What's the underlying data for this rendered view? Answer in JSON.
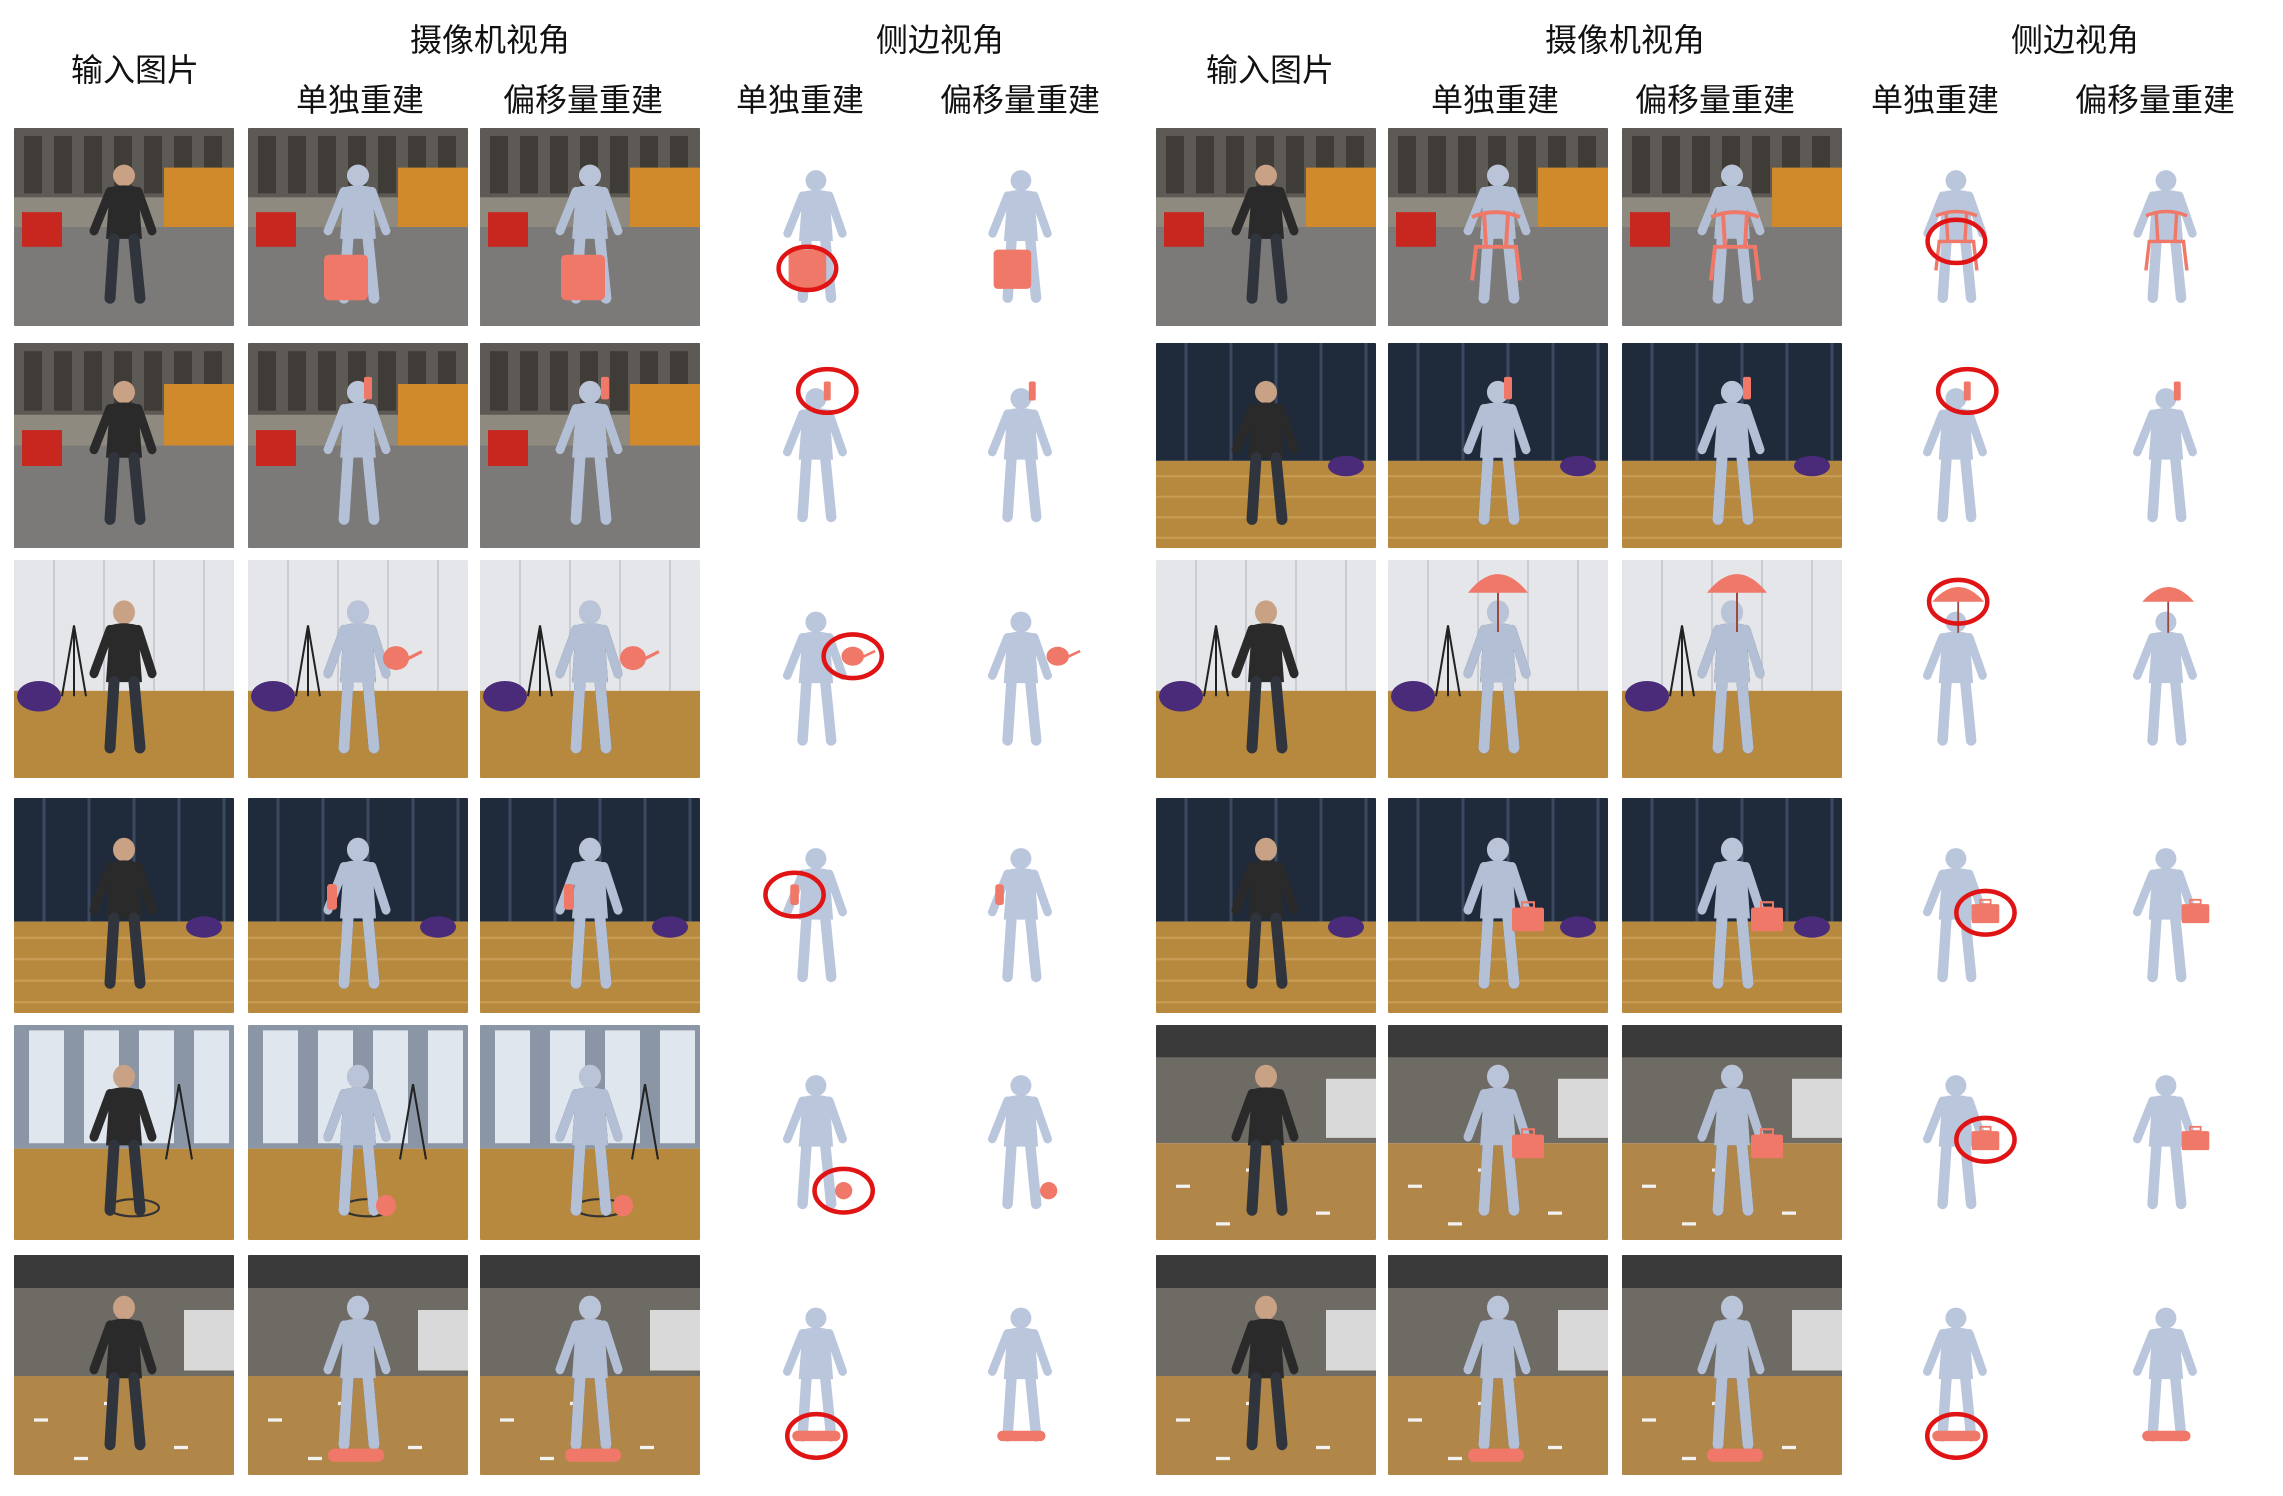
{
  "headers": {
    "left": {
      "input": "输入图片",
      "camera_view": "摄像机视角",
      "side_view": "侧边视角",
      "cam_single": "单独重建",
      "cam_offset": "偏移量重建",
      "side_single": "单独重建",
      "side_offset": "偏移量重建"
    },
    "right": {
      "input": "输入图片",
      "camera_view": "摄像机视角",
      "side_view": "侧边视角",
      "cam_single": "单独重建",
      "cam_offset": "偏移量重建",
      "side_single": "单独重建",
      "side_offset": "偏移量重建"
    }
  },
  "colors": {
    "body_mesh": "#b9c6dc",
    "object_mesh": "#f07868",
    "highlight_circle": "#e01414",
    "floor_wood": "#b7893f",
    "library_wall": "#8f8a80",
    "lab_wall": "#e4e6ea",
    "dark_glass": "#1f2a3a"
  },
  "panels": [
    {
      "name": "left",
      "rows": [
        {
          "object": "suitcase",
          "scene": "library",
          "circled": "single"
        },
        {
          "object": "phone",
          "scene": "library",
          "circled": "single"
        },
        {
          "object": "racket",
          "scene": "lab",
          "circled": "single"
        },
        {
          "object": "bottle",
          "scene": "darkroom",
          "circled": "single"
        },
        {
          "object": "ball",
          "scene": "window",
          "circled": "single"
        },
        {
          "object": "skateboard",
          "scene": "office",
          "circled": "single"
        }
      ]
    },
    {
      "name": "right",
      "rows": [
        {
          "object": "chair",
          "scene": "library",
          "circled": "single"
        },
        {
          "object": "phone",
          "scene": "darkroom",
          "circled": "single"
        },
        {
          "object": "umbrella",
          "scene": "lab",
          "circled": "single"
        },
        {
          "object": "briefcase",
          "scene": "darkroom",
          "circled": "single"
        },
        {
          "object": "briefcase",
          "scene": "office",
          "circled": "single"
        },
        {
          "object": "skateboard",
          "scene": "office",
          "circled": "single"
        }
      ]
    }
  ]
}
